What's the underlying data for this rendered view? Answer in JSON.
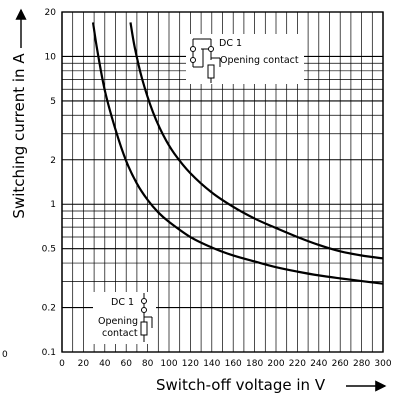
{
  "chart_data": {
    "type": "line",
    "title": "",
    "xlabel": "Switch-off voltage in V",
    "ylabel": "Switching current in A",
    "xlim": [
      0,
      300
    ],
    "ylim": [
      0.1,
      20
    ],
    "yscale": "log",
    "grid": true,
    "x_ticks": [
      "0",
      "20",
      "40",
      "60",
      "80",
      "100",
      "120",
      "140",
      "160",
      "180",
      "200",
      "220",
      "240",
      "260",
      "280",
      "300"
    ],
    "y_ticks": [
      {
        "value": 0.1,
        "label": "0.1"
      },
      {
        "value": 0.2,
        "label": "0.2"
      },
      {
        "value": 0.5,
        "label": "0.5"
      },
      {
        "value": 1,
        "label": "1"
      },
      {
        "value": 2,
        "label": "2"
      },
      {
        "value": 5,
        "label": "5"
      },
      {
        "value": 10,
        "label": "10"
      },
      {
        "value": 20,
        "label": "20"
      }
    ],
    "stray_label": "0",
    "series": [
      {
        "x": [
          29,
          33,
          40,
          50,
          60,
          70,
          80,
          90,
          100,
          120,
          140,
          160,
          180,
          200,
          220,
          240,
          260,
          280,
          300
        ],
        "y": [
          17.0,
          11.0,
          5.9,
          3.2,
          1.96,
          1.38,
          1.07,
          0.88,
          0.76,
          0.6,
          0.51,
          0.45,
          0.41,
          0.375,
          0.35,
          0.33,
          0.315,
          0.302,
          0.29
        ]
      },
      {
        "x": [
          64,
          68,
          75,
          85,
          95,
          105,
          120,
          140,
          160,
          180,
          200,
          220,
          240,
          260,
          280,
          300
        ],
        "y": [
          17.0,
          11.5,
          7.0,
          4.2,
          2.9,
          2.2,
          1.62,
          1.2,
          0.96,
          0.8,
          0.69,
          0.6,
          0.53,
          0.48,
          0.45,
          0.43
        ]
      }
    ],
    "annotations": {
      "upper": {
        "line1": "DC 1",
        "line2": "Opening contact"
      },
      "lower": {
        "line1": "DC 1",
        "line2": "Opening",
        "line3": "contact"
      }
    }
  }
}
